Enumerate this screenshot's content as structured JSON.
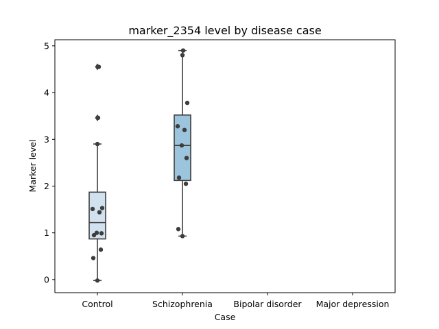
{
  "chart_data": {
    "type": "box",
    "title": "marker_2354 level by disease case",
    "xlabel": "Case",
    "ylabel": "Marker level",
    "categories": [
      "Control",
      "Schizophrenia",
      "Bipolar disorder",
      "Major depression"
    ],
    "ylim": [
      -0.28,
      5.13
    ],
    "yticks": [
      0,
      1,
      2,
      3,
      4,
      5
    ],
    "grid": false,
    "boxes": [
      {
        "category": "Control",
        "color": "#d2e1ef",
        "q1": 0.87,
        "median": 1.22,
        "q3": 1.87,
        "whisker_low": -0.02,
        "whisker_high": 2.9,
        "outliers": [
          3.46,
          4.55
        ],
        "points": [
          -0.02,
          0.46,
          0.64,
          0.95,
          0.99,
          1.0,
          1.44,
          1.51,
          1.53,
          2.9,
          3.46,
          4.55
        ]
      },
      {
        "category": "Schizophrenia",
        "color": "#9cc4dc",
        "q1": 2.12,
        "median": 2.87,
        "q3": 3.52,
        "whisker_low": 0.93,
        "whisker_high": 4.9,
        "outliers": [],
        "points": [
          0.93,
          1.08,
          2.05,
          2.18,
          2.6,
          2.87,
          3.2,
          3.28,
          3.78,
          4.8,
          4.9
        ]
      }
    ],
    "colors": {
      "box_edge": "#3d3d3d",
      "point": "#3d3d3d",
      "axes": "#000000"
    }
  }
}
